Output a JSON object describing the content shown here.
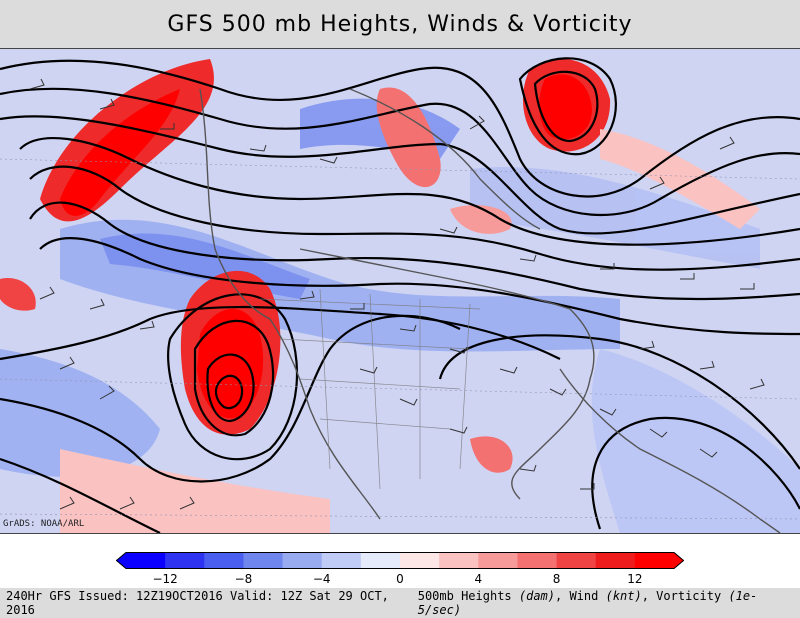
{
  "title": "GFS 500 mb Heights, Winds & Vorticity",
  "credit": "GrADS: NOAA/ARL",
  "colorbar": {
    "ticks": [
      "−12",
      "−8",
      "−4",
      "0",
      "4",
      "8",
      "12"
    ],
    "tick_values": [
      -12,
      -8,
      -4,
      0,
      4,
      8,
      12
    ],
    "range": [
      -14,
      14
    ],
    "colors": [
      "#0b00ff",
      "#2e33f2",
      "#4a5ff0",
      "#6f86ee",
      "#98abf1",
      "#c1ccf6",
      "#e6ebfb",
      "#fde6e6",
      "#fbc2c2",
      "#f79a9a",
      "#f47171",
      "#f04444",
      "#ee1c1c",
      "#ff0000"
    ]
  },
  "footer": {
    "left": "240Hr GFS Issued: 12Z19OCT2016 Valid: 12Z Sat 29 OCT, 2016",
    "right_prefix": "500mb Heights",
    "right_unit1": "(dam)",
    "right_mid1": ", Wind",
    "right_unit2": "(knt)",
    "right_mid2": ", Vorticity",
    "right_unit3": "(1e-5/sec)"
  },
  "map": {
    "background_color": "#cfd4f3",
    "positive_vorticity_color": "#ee2a2a",
    "negative_vorticity_color": "#5c6de8",
    "contour_color": "#000000",
    "coastline_color": "#555555"
  }
}
